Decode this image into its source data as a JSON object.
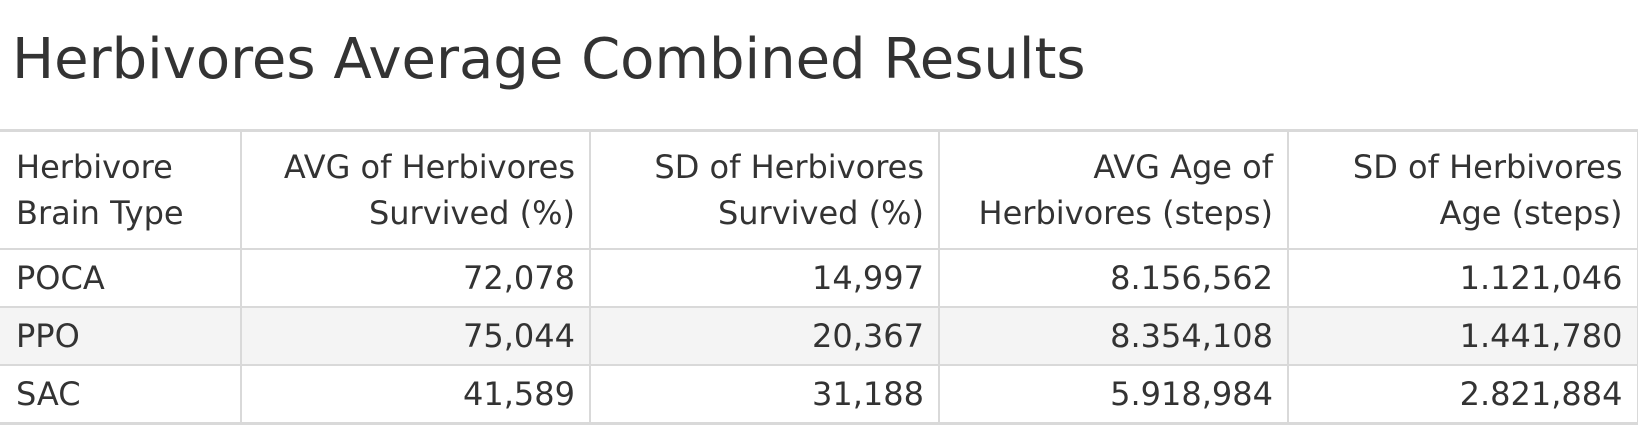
{
  "title": "Herbivores Average Combined Results",
  "chart_data": {
    "type": "table",
    "title": "Herbivores Average Combined Results",
    "columns": [
      [
        "Herbivore",
        "Brain Type"
      ],
      [
        "AVG of Herbivores",
        "Survived (%)"
      ],
      [
        "SD of Herbivores",
        "Survived (%)"
      ],
      [
        "AVG Age of",
        "Herbivores (steps)"
      ],
      [
        "SD of Herbivores",
        "Age (steps)"
      ]
    ],
    "rows": [
      {
        "label": "POCA",
        "cells": [
          "72,078",
          "14,997",
          "8.156,562",
          "1.121,046"
        ]
      },
      {
        "label": "PPO",
        "cells": [
          "75,044",
          "20,367",
          "8.354,108",
          "1.441,780"
        ]
      },
      {
        "label": "SAC",
        "cells": [
          "41,589",
          "31,188",
          "5.918,984",
          "2.821,884"
        ]
      }
    ],
    "values": [
      {
        "brain_type": "POCA",
        "avg_survived_pct": 72.078,
        "sd_survived_pct": 14.997,
        "avg_age_steps": 8156.562,
        "sd_age_steps": 1121.046
      },
      {
        "brain_type": "PPO",
        "avg_survived_pct": 75.044,
        "sd_survived_pct": 20.367,
        "avg_age_steps": 8354.108,
        "sd_age_steps": 1441.78
      },
      {
        "brain_type": "SAC",
        "avg_survived_pct": 41.589,
        "sd_survived_pct": 31.188,
        "avg_age_steps": 5918.984,
        "sd_age_steps": 2821.884
      }
    ],
    "striped_rows": true,
    "stripe_color": "#f4f4f4",
    "border_color": "#d9d9d9",
    "text_color": "#333333"
  }
}
